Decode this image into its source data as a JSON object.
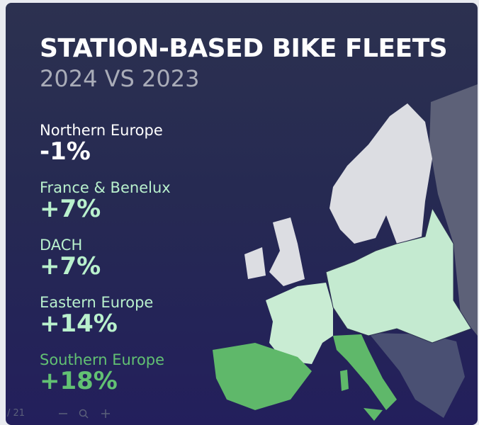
{
  "header": {
    "title": "STATION-BASED BIKE FLEETS",
    "subtitle": "2024 VS 2023"
  },
  "regions": [
    {
      "name": "Northern Europe",
      "change": "-1%"
    },
    {
      "name": "France & Benelux",
      "change": "+7%"
    },
    {
      "name": "DACH",
      "change": "+7%"
    },
    {
      "name": "Eastern Europe",
      "change": "+14%"
    },
    {
      "name": "Southern Europe",
      "change": "+18%"
    }
  ],
  "toolbar": {
    "pages": "/ 21"
  }
}
